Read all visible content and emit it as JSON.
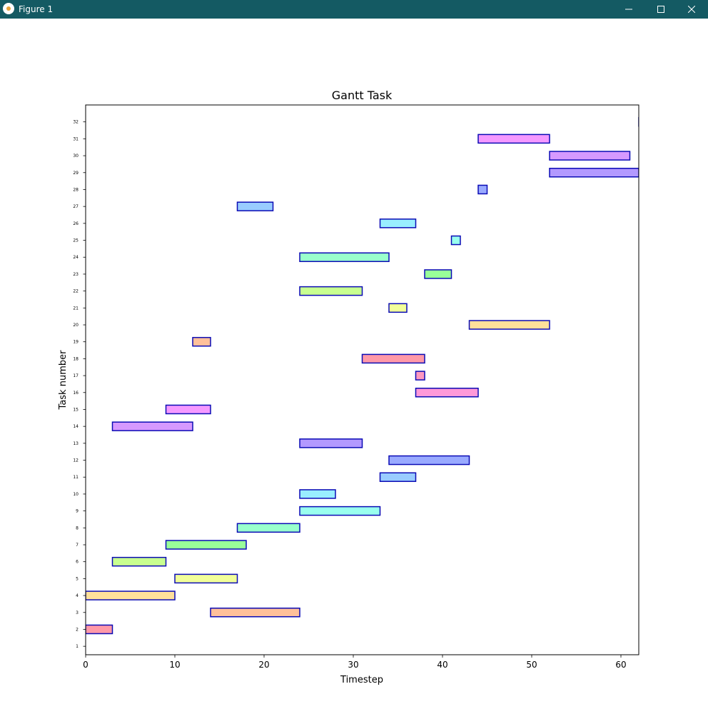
{
  "window": {
    "title": "Figure 1",
    "controls": [
      "minimize",
      "maximize",
      "close"
    ]
  },
  "colors": {
    "titlebar": "#145a63",
    "bar_edge": "#0b0bb5"
  },
  "chart_data": {
    "type": "gantt",
    "title": "Gantt Task",
    "xlabel": "Timestep",
    "ylabel": "Task number",
    "xlim": [
      0,
      62
    ],
    "x_ticks": [
      0,
      10,
      20,
      30,
      40,
      50,
      60
    ],
    "ylim": [
      0.5,
      33
    ],
    "y_ticks": [
      1,
      2,
      3,
      4,
      5,
      6,
      7,
      8,
      9,
      10,
      11,
      12,
      13,
      14,
      15,
      16,
      17,
      18,
      19,
      20,
      21,
      22,
      23,
      24,
      25,
      26,
      27,
      28,
      29,
      30,
      31,
      32
    ],
    "grid": false,
    "tasks": [
      {
        "task": 2,
        "start": 0,
        "end": 3,
        "color": "#ff99a8"
      },
      {
        "task": 3,
        "start": 14,
        "end": 24,
        "color": "#ffc09a"
      },
      {
        "task": 4,
        "start": 0,
        "end": 10,
        "color": "#ffe09a"
      },
      {
        "task": 5,
        "start": 10,
        "end": 17,
        "color": "#f2ff99"
      },
      {
        "task": 6,
        "start": 3,
        "end": 9,
        "color": "#c8ff90"
      },
      {
        "task": 7,
        "start": 9,
        "end": 18,
        "color": "#99ff99"
      },
      {
        "task": 8,
        "start": 17,
        "end": 24,
        "color": "#99ffcc"
      },
      {
        "task": 9,
        "start": 24,
        "end": 33,
        "color": "#99ffee"
      },
      {
        "task": 10,
        "start": 24,
        "end": 28,
        "color": "#99eeff"
      },
      {
        "task": 11,
        "start": 33,
        "end": 37,
        "color": "#99ccff"
      },
      {
        "task": 12,
        "start": 34,
        "end": 43,
        "color": "#99aaff"
      },
      {
        "task": 13,
        "start": 24,
        "end": 31,
        "color": "#b399ff"
      },
      {
        "task": 14,
        "start": 3,
        "end": 12,
        "color": "#d699ff"
      },
      {
        "task": 15,
        "start": 9,
        "end": 14,
        "color": "#f599ff"
      },
      {
        "task": 16,
        "start": 37,
        "end": 44,
        "color": "#ff99d9"
      },
      {
        "task": 17,
        "start": 37,
        "end": 38,
        "color": "#ff99c0"
      },
      {
        "task": 18,
        "start": 31,
        "end": 38,
        "color": "#ff99a8"
      },
      {
        "task": 19,
        "start": 12,
        "end": 14,
        "color": "#ffc09a"
      },
      {
        "task": 20,
        "start": 43,
        "end": 52,
        "color": "#ffe09a"
      },
      {
        "task": 21,
        "start": 34,
        "end": 36,
        "color": "#f2ff99"
      },
      {
        "task": 22,
        "start": 24,
        "end": 31,
        "color": "#c8ff90"
      },
      {
        "task": 23,
        "start": 38,
        "end": 41,
        "color": "#99ff99"
      },
      {
        "task": 24,
        "start": 24,
        "end": 34,
        "color": "#99ffcc"
      },
      {
        "task": 25,
        "start": 41,
        "end": 42,
        "color": "#99ffee"
      },
      {
        "task": 26,
        "start": 33,
        "end": 37,
        "color": "#99eeff"
      },
      {
        "task": 27,
        "start": 17,
        "end": 21,
        "color": "#99ccff"
      },
      {
        "task": 28,
        "start": 44,
        "end": 45,
        "color": "#99aaff"
      },
      {
        "task": 29,
        "start": 52,
        "end": 62,
        "color": "#b399ff"
      },
      {
        "task": 30,
        "start": 52,
        "end": 61,
        "color": "#d699ff"
      },
      {
        "task": 31,
        "start": 44,
        "end": 52,
        "color": "#f599ff"
      },
      {
        "task": 32,
        "start": 62,
        "end": 63,
        "color": "#ff99d9"
      }
    ]
  }
}
